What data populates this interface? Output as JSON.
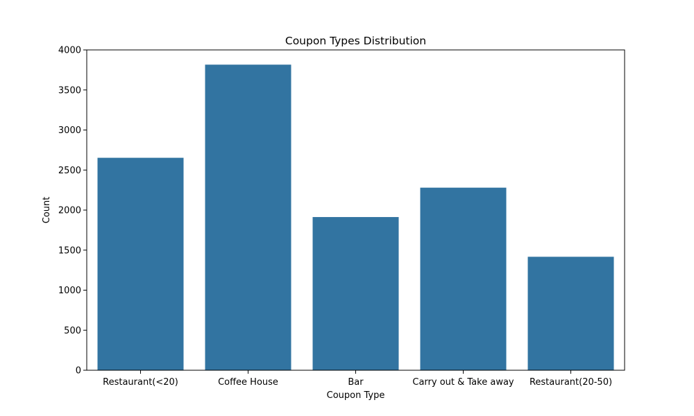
{
  "chart_data": {
    "type": "bar",
    "title": "Coupon Types Distribution",
    "xlabel": "Coupon Type",
    "ylabel": "Count",
    "categories": [
      "Restaurant(<20)",
      "Coffee House",
      "Bar",
      "Carry out & Take away",
      "Restaurant(20-50)"
    ],
    "values": [
      2653,
      3816,
      1913,
      2280,
      1417
    ],
    "ylim": [
      0,
      4000
    ],
    "yticks": [
      "0",
      "500",
      "1000",
      "1500",
      "2000",
      "2500",
      "3000",
      "3500",
      "4000"
    ],
    "bar_color": "#3274a1",
    "grid": false,
    "legend": "none"
  }
}
